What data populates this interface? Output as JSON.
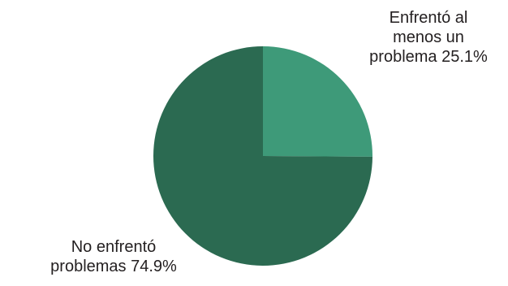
{
  "chart_data": {
    "type": "pie",
    "title": "",
    "slices": [
      {
        "label_lines": [
          "Enfrentó al",
          "menos un",
          "problema 25.1%"
        ],
        "category": "Enfrentó al menos un problema",
        "value": 25.1,
        "color": "#3e9a79"
      },
      {
        "label_lines": [
          "No enfrentó",
          "problemas 74.9%"
        ],
        "category": "No enfrentó problemas",
        "value": 74.9,
        "color": "#2b6a51"
      }
    ],
    "start": "12 o'clock",
    "direction": "clockwise",
    "legend": "none"
  }
}
